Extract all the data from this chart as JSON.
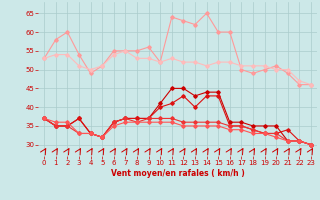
{
  "x": [
    0,
    1,
    2,
    3,
    4,
    5,
    6,
    7,
    8,
    9,
    10,
    11,
    12,
    13,
    14,
    15,
    16,
    17,
    18,
    19,
    20,
    21,
    22,
    23
  ],
  "line1": [
    53,
    58,
    60,
    54,
    49,
    51,
    55,
    55,
    55,
    56,
    52,
    64,
    63,
    62,
    65,
    60,
    60,
    50,
    49,
    50,
    51,
    49,
    46,
    46
  ],
  "line2": [
    53,
    54,
    54,
    51,
    50,
    51,
    54,
    55,
    53,
    53,
    52,
    53,
    52,
    52,
    51,
    52,
    52,
    51,
    51,
    51,
    50,
    50,
    47,
    46
  ],
  "line3": [
    37,
    35,
    35,
    37,
    33,
    32,
    36,
    37,
    37,
    37,
    41,
    45,
    45,
    43,
    44,
    44,
    36,
    36,
    35,
    35,
    35,
    31,
    31,
    30
  ],
  "line4": [
    37,
    35,
    35,
    37,
    33,
    32,
    36,
    37,
    37,
    37,
    40,
    41,
    43,
    40,
    43,
    43,
    35,
    35,
    34,
    33,
    33,
    34,
    31,
    30
  ],
  "line5": [
    37,
    35,
    35,
    33,
    33,
    32,
    36,
    37,
    36,
    37,
    37,
    37,
    36,
    36,
    36,
    36,
    35,
    35,
    34,
    33,
    33,
    31,
    31,
    30
  ],
  "line6": [
    37,
    36,
    36,
    33,
    33,
    32,
    35,
    36,
    36,
    36,
    36,
    36,
    35,
    35,
    35,
    35,
    34,
    34,
    33,
    33,
    32,
    31,
    31,
    30
  ],
  "bg_color": "#cce8e8",
  "grid_color": "#aacccc",
  "line1_color": "#ff9999",
  "line2_color": "#ffbbbb",
  "line3_color": "#cc0000",
  "line4_color": "#dd1111",
  "line5_color": "#ee3333",
  "line6_color": "#ff5555",
  "arrow_color": "#cc0000",
  "xlabel": "Vent moyen/en rafales ( km/h )",
  "ylim": [
    27,
    68
  ],
  "yticks": [
    30,
    35,
    40,
    45,
    50,
    55,
    60,
    65
  ],
  "xticks": [
    0,
    1,
    2,
    3,
    4,
    5,
    6,
    7,
    8,
    9,
    10,
    11,
    12,
    13,
    14,
    15,
    16,
    17,
    18,
    19,
    20,
    21,
    22,
    23
  ]
}
